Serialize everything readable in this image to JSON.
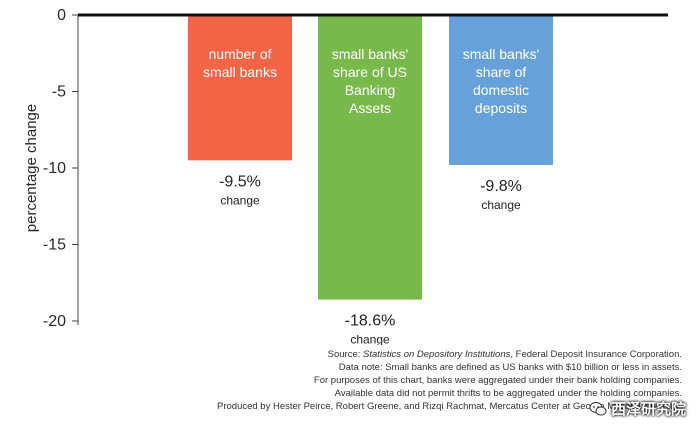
{
  "chart_data": {
    "type": "bar",
    "title": "",
    "xlabel": "",
    "ylabel": "percentage change",
    "ylim": [
      -20,
      0
    ],
    "yticks": [
      0,
      -5,
      -10,
      -15,
      -20
    ],
    "yticks_labels": [
      "0",
      "-5",
      "-10",
      "-15",
      "-20"
    ],
    "grid": false,
    "bars": [
      {
        "label_lines": [
          "number of",
          "small banks"
        ],
        "value": -9.5,
        "value_label": "-9.5%",
        "change_label": "change",
        "color": "#f26647"
      },
      {
        "label_lines": [
          "small banks'",
          "share of US",
          "Banking",
          "Assets"
        ],
        "value": -18.6,
        "value_label": "-18.6%",
        "change_label": "change",
        "color": "#79b84a"
      },
      {
        "label_lines": [
          "small banks'",
          "share of",
          "domestic",
          "deposits"
        ],
        "value": -9.8,
        "value_label": "-9.8%",
        "change_label": "change",
        "color": "#66a2d9"
      }
    ]
  },
  "notes": {
    "source_prefix": "Source: ",
    "source_title": "Statistics on Depository Institutions",
    "source_suffix": ", Federal Deposit Insurance Corporation.",
    "line2": "Data note: Small banks are defined as US banks with $10 billion or less in assets.",
    "line3": "For purposes of this chart, banks were aggregated under their bank holding companies.",
    "line4": "Available data did not permit thrifts to be aggregated under the holding companies.",
    "line5": "Produced by Hester Peirce, Robert Greene, and Rizqi Rachmat, Mercatus Center at George Mason University."
  },
  "watermark": {
    "text": "西泽研究院",
    "icon": "wechat-icon"
  }
}
